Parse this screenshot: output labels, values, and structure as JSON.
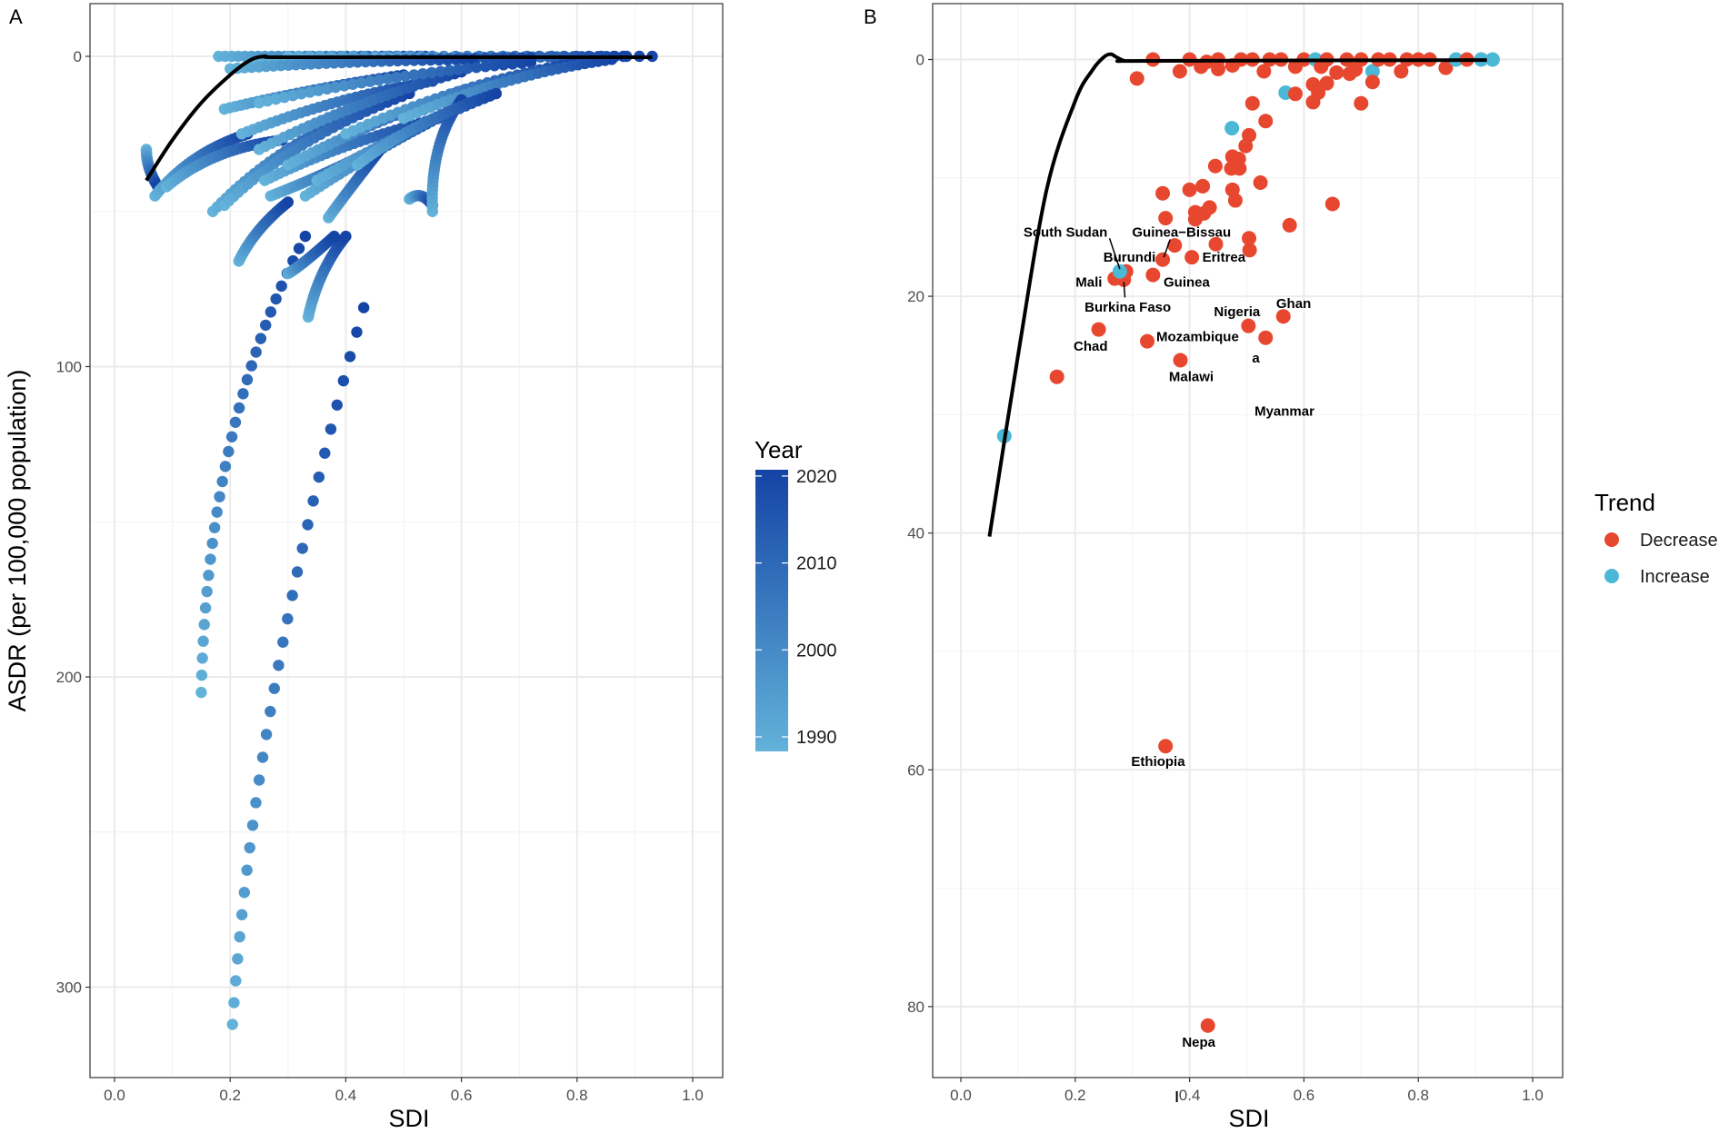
{
  "chart_data": [
    {
      "panel": "A",
      "type": "scatter",
      "xlabel": "SDI",
      "ylabel": "ASDR (per 100,000 population)",
      "xlim": [
        -0.04,
        1.05
      ],
      "ylim": [
        -17,
        329
      ],
      "y_reversed": true,
      "grid": true,
      "xticks": [
        0.0,
        0.2,
        0.4,
        0.6,
        0.8,
        1.0
      ],
      "xtick_labels": [
        "0.0",
        "0.2",
        "0.4",
        "0.6",
        "0.8",
        "1.0"
      ],
      "yticks": [
        0,
        100,
        200,
        300
      ],
      "ytick_labels": [
        "0",
        "100",
        "200",
        "300"
      ],
      "legend": {
        "title": "Year",
        "type": "colorbar",
        "ticks": [
          "2020",
          "2010",
          "2000",
          "1990"
        ],
        "range": [
          1990,
          2021
        ],
        "low_color": "#62b2d9",
        "high_color": "#1444a6",
        "placement": "right"
      },
      "years": [
        1990,
        2021
      ],
      "trajectories": [
        [
          0.204,
          312,
          0.431,
          81,
          0.28,
          200
        ],
        [
          0.15,
          205,
          0.33,
          58,
          0.2,
          125
        ],
        [
          0.18,
          0,
          0.55,
          0,
          0.36,
          0
        ],
        [
          0.3,
          0,
          0.93,
          0,
          0.6,
          0
        ],
        [
          0.45,
          0.5,
          0.88,
          0,
          0.66,
          0.3
        ],
        [
          0.25,
          2,
          0.72,
          0.5,
          0.48,
          1
        ],
        [
          0.2,
          4,
          0.62,
          1,
          0.4,
          2
        ],
        [
          0.055,
          30,
          0.075,
          42,
          0.06,
          36
        ],
        [
          0.07,
          45,
          0.23,
          25,
          0.14,
          33
        ],
        [
          0.09,
          42,
          0.29,
          27,
          0.18,
          32
        ],
        [
          0.17,
          50,
          0.46,
          15,
          0.3,
          30
        ],
        [
          0.19,
          48,
          0.51,
          12,
          0.33,
          28
        ],
        [
          0.19,
          17,
          0.5,
          6,
          0.34,
          11
        ],
        [
          0.22,
          25,
          0.55,
          8,
          0.38,
          15
        ],
        [
          0.25,
          30,
          0.6,
          5,
          0.42,
          16
        ],
        [
          0.26,
          40,
          0.56,
          20,
          0.4,
          29
        ],
        [
          0.3,
          35,
          0.62,
          10,
          0.46,
          21
        ],
        [
          0.27,
          45,
          0.45,
          30,
          0.36,
          38
        ],
        [
          0.33,
          45,
          0.59,
          17,
          0.46,
          30
        ],
        [
          0.35,
          40,
          0.66,
          12,
          0.5,
          25
        ],
        [
          0.25,
          15,
          0.72,
          2,
          0.48,
          7
        ],
        [
          0.4,
          25,
          0.8,
          2,
          0.6,
          11
        ],
        [
          0.5,
          20,
          0.86,
          1,
          0.68,
          8
        ],
        [
          0.51,
          46,
          0.55,
          48,
          0.53,
          45
        ],
        [
          0.55,
          50,
          0.6,
          14,
          0.56,
          30
        ],
        [
          0.215,
          66,
          0.3,
          47,
          0.25,
          56
        ],
        [
          0.335,
          84,
          0.4,
          58,
          0.36,
          70
        ],
        [
          0.3,
          70,
          0.38,
          58,
          0.33,
          66
        ],
        [
          0.37,
          52,
          0.46,
          30,
          0.41,
          42
        ],
        [
          0.42,
          35,
          0.66,
          12,
          0.53,
          22
        ]
      ],
      "trend_line": [
        [
          0.055,
          40
        ],
        [
          0.1,
          27
        ],
        [
          0.15,
          15
        ],
        [
          0.2,
          6
        ],
        [
          0.235,
          1.2
        ],
        [
          0.26,
          0
        ],
        [
          0.28,
          0.3
        ],
        [
          0.5,
          0.3
        ],
        [
          0.93,
          0.3
        ]
      ]
    },
    {
      "panel": "B",
      "type": "scatter",
      "xlabel": "SDI",
      "xlim": [
        -0.05,
        1.05
      ],
      "ylim": [
        -4.7,
        86
      ],
      "y_reversed": true,
      "grid": true,
      "xticks": [
        0.0,
        0.2,
        0.4,
        0.6,
        0.8,
        1.0
      ],
      "xtick_labels": [
        "0.0",
        "0.2",
        "0.4",
        "0.6",
        "0.8",
        "1.0"
      ],
      "yticks": [
        0,
        20,
        40,
        60,
        80
      ],
      "ytick_labels": [
        "0",
        "20",
        "40",
        "60",
        "80"
      ],
      "legend": {
        "title": "Trend",
        "placement": "right",
        "entries": [
          {
            "label": "Decrease",
            "color": "#e8472f"
          },
          {
            "label": "Increase",
            "color": "#4bb9d6"
          }
        ]
      },
      "points": [
        [
          0.308,
          1.6,
          "D"
        ],
        [
          0.336,
          0,
          "D"
        ],
        [
          0.383,
          1.0,
          "D"
        ],
        [
          0.42,
          0.6,
          "D"
        ],
        [
          0.4,
          0,
          "D"
        ],
        [
          0.43,
          0.2,
          "D"
        ],
        [
          0.45,
          0,
          "D"
        ],
        [
          0.45,
          0.8,
          "D"
        ],
        [
          0.475,
          0.5,
          "D"
        ],
        [
          0.49,
          0,
          "D"
        ],
        [
          0.51,
          0,
          "D"
        ],
        [
          0.53,
          1.0,
          "D"
        ],
        [
          0.54,
          0,
          "D"
        ],
        [
          0.56,
          0,
          "D"
        ],
        [
          0.585,
          0.6,
          "D"
        ],
        [
          0.6,
          0,
          "D"
        ],
        [
          0.62,
          0,
          "I"
        ],
        [
          0.63,
          0.6,
          "D"
        ],
        [
          0.64,
          0,
          "D"
        ],
        [
          0.657,
          1.1,
          "D"
        ],
        [
          0.675,
          0,
          "D"
        ],
        [
          0.68,
          1.2,
          "D"
        ],
        [
          0.69,
          0.85,
          "D"
        ],
        [
          0.7,
          0,
          "D"
        ],
        [
          0.72,
          1.0,
          "I"
        ],
        [
          0.72,
          1.9,
          "D"
        ],
        [
          0.73,
          0,
          "D"
        ],
        [
          0.75,
          0,
          "D"
        ],
        [
          0.77,
          1.0,
          "D"
        ],
        [
          0.78,
          0,
          "D"
        ],
        [
          0.8,
          0,
          "D"
        ],
        [
          0.82,
          0,
          "D"
        ],
        [
          0.848,
          0.7,
          "D"
        ],
        [
          0.866,
          0,
          "I"
        ],
        [
          0.885,
          0,
          "D"
        ],
        [
          0.91,
          0,
          "I"
        ],
        [
          0.93,
          0,
          "I"
        ],
        [
          0.568,
          2.8,
          "I"
        ],
        [
          0.585,
          2.9,
          "D"
        ],
        [
          0.616,
          2.1,
          "D"
        ],
        [
          0.64,
          2.0,
          "D"
        ],
        [
          0.625,
          2.8,
          "D"
        ],
        [
          0.616,
          3.6,
          "D"
        ],
        [
          0.7,
          3.7,
          "D"
        ],
        [
          0.51,
          3.7,
          "D"
        ],
        [
          0.533,
          5.2,
          "D"
        ],
        [
          0.474,
          5.8,
          "I"
        ],
        [
          0.504,
          6.4,
          "D"
        ],
        [
          0.498,
          7.3,
          "D"
        ],
        [
          0.475,
          8.2,
          "D"
        ],
        [
          0.486,
          8.4,
          "D"
        ],
        [
          0.473,
          9.2,
          "D"
        ],
        [
          0.487,
          9.2,
          "D"
        ],
        [
          0.445,
          9.0,
          "D"
        ],
        [
          0.524,
          10.4,
          "D"
        ],
        [
          0.475,
          11.0,
          "D"
        ],
        [
          0.48,
          11.9,
          "D"
        ],
        [
          0.353,
          11.3,
          "D"
        ],
        [
          0.4,
          11.0,
          "D"
        ],
        [
          0.423,
          10.7,
          "D"
        ],
        [
          0.41,
          12.9,
          "D"
        ],
        [
          0.435,
          12.5,
          "D"
        ],
        [
          0.425,
          13.0,
          "D"
        ],
        [
          0.41,
          13.5,
          "D"
        ],
        [
          0.358,
          13.4,
          "D"
        ],
        [
          0.65,
          12.2,
          "D"
        ],
        [
          0.575,
          14.0,
          "D"
        ],
        [
          0.504,
          15.1,
          "D"
        ],
        [
          0.505,
          16.1,
          "D"
        ],
        [
          0.446,
          15.6,
          "D"
        ],
        [
          0.374,
          15.7,
          "D"
        ],
        [
          0.404,
          16.7,
          "D"
        ],
        [
          0.353,
          16.9,
          "D"
        ],
        [
          0.289,
          17.9,
          "D"
        ],
        [
          0.269,
          18.5,
          "D"
        ],
        [
          0.285,
          18.6,
          "D"
        ],
        [
          0.278,
          17.9,
          "I"
        ],
        [
          0.336,
          18.2,
          "D"
        ],
        [
          0.564,
          21.7,
          "D"
        ],
        [
          0.503,
          22.5,
          "D"
        ],
        [
          0.533,
          23.5,
          "D"
        ],
        [
          0.241,
          22.8,
          "D"
        ],
        [
          0.326,
          23.8,
          "D"
        ],
        [
          0.384,
          25.4,
          "D"
        ],
        [
          0.168,
          26.8,
          "D"
        ],
        [
          0.076,
          31.8,
          "I"
        ],
        [
          0.358,
          58.0,
          "D"
        ],
        [
          0.432,
          81.6,
          "D"
        ]
      ],
      "labels": [
        {
          "text": "South Sudan",
          "x": 0.183,
          "y": 14.6
        },
        {
          "text": "Guinea−Bissau",
          "x": 0.386,
          "y": 14.6
        },
        {
          "text": "Burundi",
          "x": 0.295,
          "y": 16.7
        },
        {
          "text": "Eritrea",
          "x": 0.46,
          "y": 16.7
        },
        {
          "text": "Mali",
          "x": 0.224,
          "y": 18.8
        },
        {
          "text": "Guinea",
          "x": 0.395,
          "y": 18.8
        },
        {
          "text": "Burkina Faso",
          "x": 0.292,
          "y": 20.9
        },
        {
          "text": "Nigeria",
          "x": 0.483,
          "y": 21.3
        },
        {
          "text": "Ghan",
          "x": 0.582,
          "y": 20.6
        },
        {
          "text": "Mozambique",
          "x": 0.414,
          "y": 23.4
        },
        {
          "text": "Chad",
          "x": 0.227,
          "y": 24.2
        },
        {
          "text": "a",
          "x": 0.516,
          "y": 25.2
        },
        {
          "text": "Malawi",
          "x": 0.403,
          "y": 26.8
        },
        {
          "text": "Myanmar",
          "x": 0.566,
          "y": 29.7
        },
        {
          "text": "Ethiopia",
          "x": 0.345,
          "y": 59.3
        },
        {
          "text": "Nepa",
          "x": 0.416,
          "y": 83.0
        }
      ],
      "label_segments": [
        [
          0.26,
          15.1,
          0.278,
          17.7
        ],
        [
          0.366,
          15.2,
          0.355,
          16.7
        ],
        [
          0.285,
          18.8,
          0.287,
          20.1
        ]
      ],
      "trend_line": [
        [
          0.05,
          40.3
        ],
        [
          0.1,
          25
        ],
        [
          0.15,
          11
        ],
        [
          0.2,
          3.5
        ],
        [
          0.23,
          0.9
        ],
        [
          0.25,
          -0.2
        ],
        [
          0.262,
          -0.45
        ],
        [
          0.272,
          -0.2
        ],
        [
          0.285,
          0.1
        ],
        [
          0.3,
          0.12
        ],
        [
          0.6,
          0.08
        ],
        [
          0.92,
          0.05
        ]
      ]
    }
  ],
  "panels": {
    "a_letter": "A",
    "b_letter": "B"
  },
  "axes": {
    "a_xlabel": "SDI",
    "a_ylabel": "ASDR (per 100,000 population)",
    "b_xlabel": "SDI"
  },
  "legends": {
    "year_title": "Year",
    "trend_title": "Trend",
    "decrease": "Decrease",
    "increase": "Increase",
    "year_ticks": [
      "2020",
      "2010",
      "2000",
      "1990"
    ]
  },
  "colors": {
    "decrease": "#e8472f",
    "increase": "#4bb9d6",
    "year_low": "#62b2d9",
    "year_high": "#1444a6",
    "grid": "#ebebeb"
  }
}
